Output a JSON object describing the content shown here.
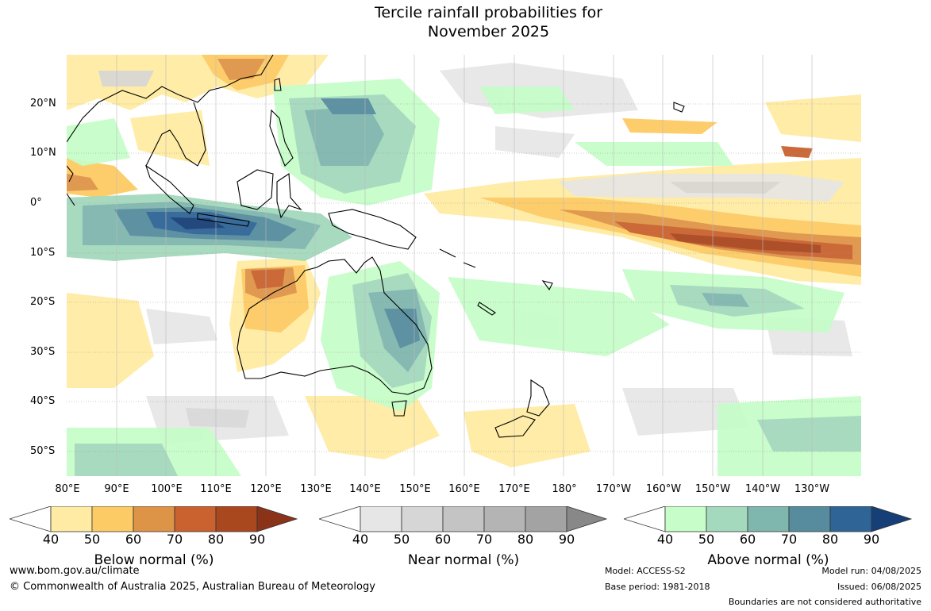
{
  "title_line1": "Tercile rainfall probabilities for",
  "title_line2": "November 2025",
  "lat_labels": [
    "20°N",
    "10°N",
    "0°",
    "10°S",
    "20°S",
    "30°S",
    "40°S",
    "50°S"
  ],
  "lon_labels": [
    "80°E",
    "90°E",
    "100°E",
    "110°E",
    "120°E",
    "130°E",
    "140°E",
    "150°E",
    "160°E",
    "170°E",
    "180°",
    "170°W",
    "160°W",
    "150°W",
    "140°W",
    "130°W"
  ],
  "colorbars": [
    {
      "name": "below",
      "title": "Below normal (%)",
      "ticks": [
        "40",
        "50",
        "60",
        "70",
        "80",
        "90"
      ],
      "colors": [
        "#ffeba3",
        "#fdcb65",
        "#de9447",
        "#c9622f",
        "#a9471f",
        "#8a3319"
      ]
    },
    {
      "name": "near",
      "title": "Near normal (%)",
      "ticks": [
        "40",
        "50",
        "60",
        "70",
        "80",
        "90"
      ],
      "colors": [
        "#e6e6e6",
        "#d6d6d6",
        "#c4c4c4",
        "#b4b4b4",
        "#a3a3a3",
        "#888888"
      ]
    },
    {
      "name": "above",
      "title": "Above normal (%)",
      "ticks": [
        "40",
        "50",
        "60",
        "70",
        "80",
        "90"
      ],
      "colors": [
        "#c7fdc9",
        "#a4d9bd",
        "#7fb6ae",
        "#568c9d",
        "#2f6596",
        "#173f77"
      ]
    }
  ],
  "footer": {
    "url": "www.bom.gov.au/climate",
    "copyright": "© Commonwealth of Australia 2025, Australian Bureau of Meteorology",
    "model": "Model: ACCESS-S2",
    "base_period": "Base period: 1981-2018",
    "model_run": "Model run: 04/08/2025",
    "issued": "Issued: 06/08/2025",
    "disclaimer": "Boundaries are not considered authoritative"
  }
}
